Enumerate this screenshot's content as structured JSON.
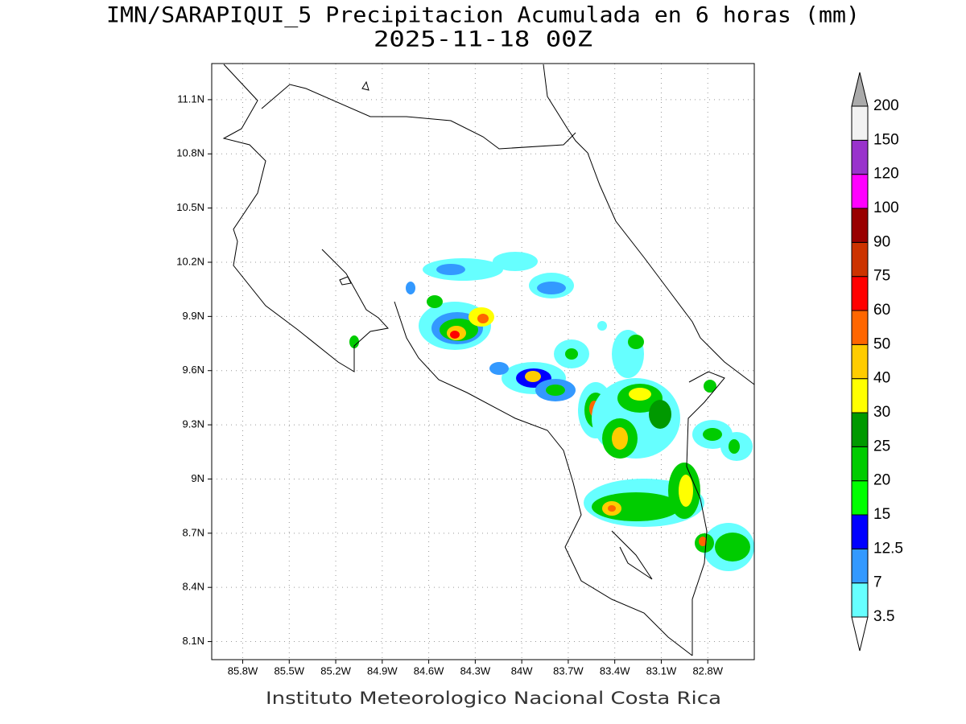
{
  "header": {
    "title": "IMN/SARAPIQUI_5 Precipitacion Acumulada en 6 horas (mm)",
    "subtitle": "2025-11-18 00Z"
  },
  "map": {
    "xlim": [
      -86.0,
      -82.5
    ],
    "ylim": [
      8.0,
      11.3
    ],
    "grid": true,
    "xticks": [
      {
        "value": -85.8,
        "label": "85.8W"
      },
      {
        "value": -85.5,
        "label": "85.5W"
      },
      {
        "value": -85.2,
        "label": "85.2W"
      },
      {
        "value": -84.9,
        "label": "84.9W"
      },
      {
        "value": -84.6,
        "label": "84.6W"
      },
      {
        "value": -84.3,
        "label": "84.3W"
      },
      {
        "value": -84.0,
        "label": "84W"
      },
      {
        "value": -83.7,
        "label": "83.7W"
      },
      {
        "value": -83.4,
        "label": "83.4W"
      },
      {
        "value": -83.1,
        "label": "83.1W"
      },
      {
        "value": -82.8,
        "label": "82.8W"
      }
    ],
    "yticks": [
      {
        "value": 8.1,
        "label": "8.1N"
      },
      {
        "value": 8.4,
        "label": "8.4N"
      },
      {
        "value": 8.7,
        "label": "8.7N"
      },
      {
        "value": 9.0,
        "label": "9N"
      },
      {
        "value": 9.3,
        "label": "9.3N"
      },
      {
        "value": 9.6,
        "label": "9.6N"
      },
      {
        "value": 9.9,
        "label": "9.9N"
      },
      {
        "value": 10.2,
        "label": "10.2N"
      },
      {
        "value": 10.5,
        "label": "10.5N"
      },
      {
        "value": 10.8,
        "label": "10.8N"
      },
      {
        "value": 11.1,
        "label": "11.1N"
      }
    ]
  },
  "colorbar": {
    "levels": [
      3.5,
      7,
      12.5,
      15,
      20,
      25,
      30,
      40,
      50,
      60,
      75,
      90,
      100,
      120,
      150,
      200
    ],
    "colors": [
      "#66ffff",
      "#3399ff",
      "#0000ff",
      "#00ff00",
      "#00cc00",
      "#009900",
      "#ffff00",
      "#ffcc00",
      "#ff6600",
      "#ff0000",
      "#cc3300",
      "#990000",
      "#ff00ff",
      "#9933cc",
      "#f2f2f2"
    ],
    "under_color": "#ffffff",
    "over_color": "#aaaaaa"
  },
  "footer": "Instituto Meteorologico Nacional Costa Rica"
}
